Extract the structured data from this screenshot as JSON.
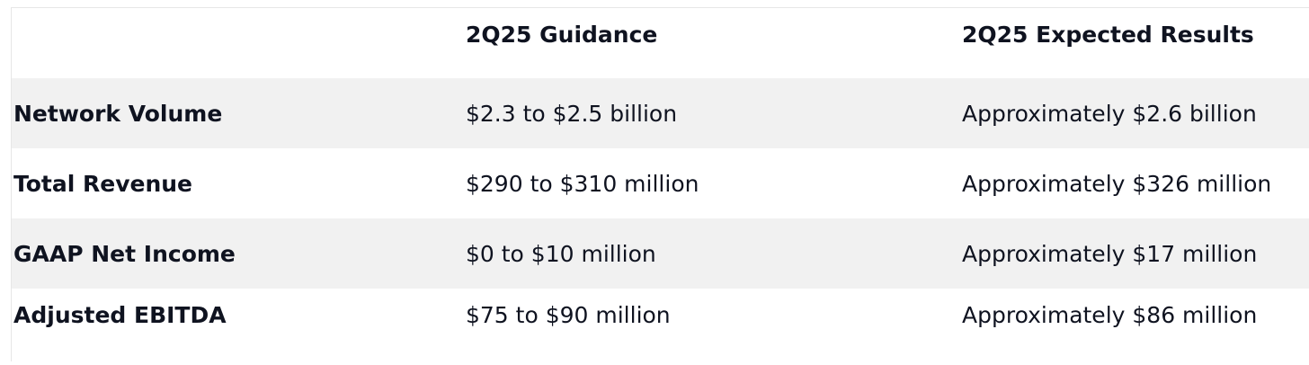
{
  "table": {
    "headers": [
      "",
      "2Q25 Guidance",
      "2Q25 Expected Results"
    ],
    "rows": [
      {
        "metric": "Network Volume",
        "guidance": "$2.3 to $2.5 billion",
        "expected": "Approximately $2.6 billion"
      },
      {
        "metric": "Total Revenue",
        "guidance": "$290 to $310 million",
        "expected": "Approximately $326 million"
      },
      {
        "metric": "GAAP Net Income",
        "guidance": "$0 to $10 million",
        "expected": "Approximately $17 million"
      },
      {
        "metric": "Adjusted EBITDA",
        "guidance": "$75 to $90 million",
        "expected": "Approximately $86 million"
      }
    ]
  },
  "colors": {
    "text": "#0f1320",
    "row_shade": "#f1f1f1",
    "background": "#ffffff",
    "border": "#e6e6e6"
  }
}
